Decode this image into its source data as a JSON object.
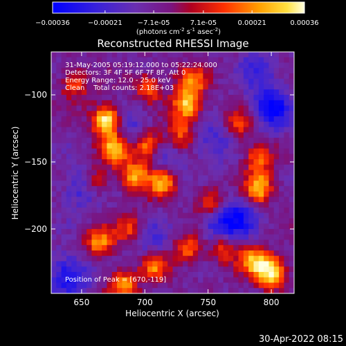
{
  "chart_data": {
    "type": "heatmap",
    "title": "Reconstructed RHESSI Image",
    "xlabel": "Heliocentric X (arcsec)",
    "ylabel": "Heliocentric Y (arcsec)",
    "xlim": [
      626,
      818
    ],
    "ylim": [
      -248,
      -68
    ],
    "x_ticks": [
      650,
      700,
      750,
      800
    ],
    "y_ticks": [
      -100,
      -150,
      -200
    ],
    "colorbar": {
      "range": [
        -0.00036,
        0.00036
      ],
      "tick_values": [
        -0.00036,
        -0.00021,
        -7.1e-05,
        7.1e-05,
        0.00021,
        0.00036
      ],
      "tick_labels": [
        "-0.00036",
        "-0.00021",
        "-7.1e-05",
        "7.1e-05",
        "0.00021",
        "0.00036"
      ],
      "units_text": "(photons cm",
      "units_sup1": "-2",
      "units_mid1": " s",
      "units_sup2": "-1",
      "units_mid2": " asec",
      "units_sup3": "-2",
      "units_end": ")"
    },
    "annotations": {
      "time_range": "31-May-2005 05:19:12.000 to 05:22:24.000",
      "detectors": "Detectors: 3F 4F 5F 6F 7F 8F, Att 0",
      "energy": "Energy Range: 12.0 - 25.0 keV",
      "clean": "Clean    Total counts: 2.18E+03",
      "peak": "Position of Peak = [670,-119]"
    },
    "peak": [
      670,
      -119
    ],
    "hot_regions": [
      {
        "x": 670,
        "y": -119,
        "v": 1.0
      },
      {
        "x": 676,
        "y": -140,
        "v": 0.8
      },
      {
        "x": 702,
        "y": -137,
        "v": 0.75
      },
      {
        "x": 692,
        "y": -160,
        "v": 0.7
      },
      {
        "x": 714,
        "y": -165,
        "v": 0.75
      },
      {
        "x": 733,
        "y": -108,
        "v": 0.8
      },
      {
        "x": 737,
        "y": -90,
        "v": 0.6
      },
      {
        "x": 729,
        "y": -130,
        "v": 0.5
      },
      {
        "x": 790,
        "y": -170,
        "v": 0.8
      },
      {
        "x": 790,
        "y": -148,
        "v": 0.55
      },
      {
        "x": 800,
        "y": -232,
        "v": 0.95
      },
      {
        "x": 786,
        "y": -224,
        "v": 0.7
      },
      {
        "x": 664,
        "y": -210,
        "v": 0.65
      },
      {
        "x": 683,
        "y": -242,
        "v": 0.65
      },
      {
        "x": 708,
        "y": -228,
        "v": 0.6
      },
      {
        "x": 735,
        "y": -215,
        "v": 0.55
      },
      {
        "x": 762,
        "y": -213,
        "v": 0.6
      },
      {
        "x": 752,
        "y": -180,
        "v": 0.5
      },
      {
        "x": 662,
        "y": -165,
        "v": 0.45
      },
      {
        "x": 645,
        "y": -92,
        "v": 0.45
      },
      {
        "x": 703,
        "y": -95,
        "v": 0.5
      },
      {
        "x": 688,
        "y": -200,
        "v": 0.45
      },
      {
        "x": 775,
        "y": -122,
        "v": 0.45
      }
    ],
    "cold_regions": [
      {
        "x": 800,
        "y": -110,
        "v": 0.95
      },
      {
        "x": 640,
        "y": -235,
        "v": 0.85
      },
      {
        "x": 760,
        "y": -200,
        "v": 0.8
      },
      {
        "x": 776,
        "y": -190,
        "v": 0.65
      },
      {
        "x": 754,
        "y": -135,
        "v": 0.5
      },
      {
        "x": 690,
        "y": -125,
        "v": 0.55
      },
      {
        "x": 718,
        "y": -150,
        "v": 0.45
      },
      {
        "x": 651,
        "y": -170,
        "v": 0.6
      },
      {
        "x": 705,
        "y": -210,
        "v": 0.45
      },
      {
        "x": 790,
        "y": -80,
        "v": 0.5
      }
    ]
  },
  "footer": {
    "timestamp": "30-Apr-2022 08:15"
  }
}
